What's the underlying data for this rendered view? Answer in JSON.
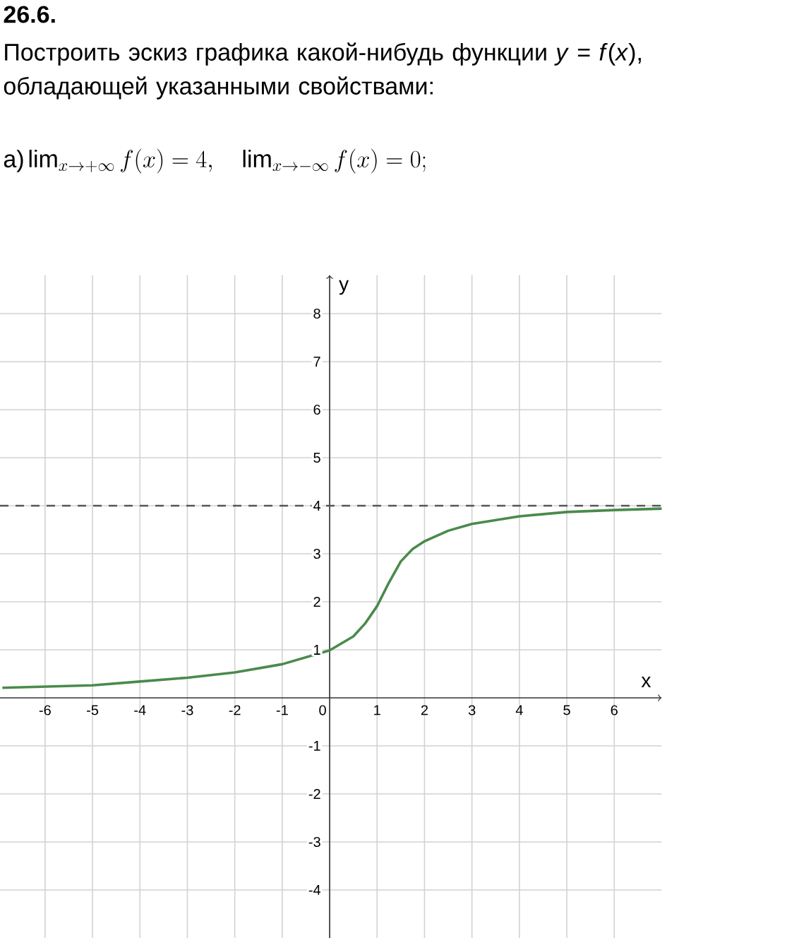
{
  "chart_data": {
    "type": "line",
    "title": "26.6.",
    "subtitle": "Построить эскиз графика какой-нибудь функции *y* = *f*(*x*), обладающей указанными свойствами:",
    "annotations": [
      "а)",
      "\\lim_{x\\to+\\infty} f(x) = 4,\\quad \\lim_{x\\to-\\infty} f(x) = 0;"
    ],
    "xlabel": "x",
    "ylabel": "y",
    "x": [
      -6.9,
      -5,
      -4,
      -3,
      -2,
      -1,
      0,
      0.5,
      0.75,
      1,
      1.25,
      1.5,
      1.75,
      2,
      2.5,
      3,
      4,
      5,
      6,
      7
    ],
    "values": [
      0.21,
      0.26,
      0.34,
      0.42,
      0.53,
      0.7,
      0.99,
      1.28,
      1.55,
      1.91,
      2.4,
      2.84,
      3.1,
      3.26,
      3.48,
      3.62,
      3.78,
      3.87,
      3.91,
      3.94
    ],
    "color": "#4a8a4c",
    "xlim": [
      -6.95,
      7
    ],
    "ylim": [
      -5,
      8.8
    ],
    "xticks": [
      -6,
      -5,
      -4,
      -3,
      -2,
      -1,
      0,
      1,
      2,
      3,
      4,
      5,
      6
    ],
    "yticks": [
      -4,
      -3,
      -2,
      -1,
      1,
      2,
      3,
      4,
      5,
      6,
      7,
      8
    ],
    "grid": true,
    "marker": "none",
    "line_style": "solid",
    "ref_lines": [
      {
        "axis": "y",
        "value": 4,
        "color": "#555555",
        "line_style": "dashed"
      }
    ]
  }
}
